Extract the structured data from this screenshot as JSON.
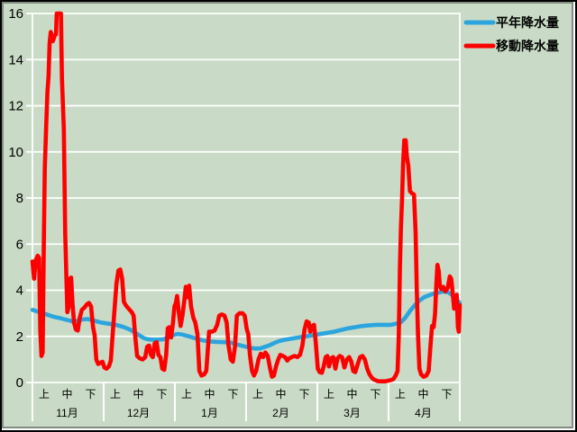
{
  "colors": {
    "background": "#c9dbc6",
    "gridline": "#ffffff",
    "axis_text": "#000000",
    "normal_precip_line": "#2aa5de",
    "moving_precip_line": "#ff0000"
  },
  "legend": {
    "position": "top-right",
    "items": [
      {
        "label": "平年降水量",
        "color": "#2aa5de"
      },
      {
        "label": "移動降水量",
        "color": "#ff0000"
      }
    ]
  },
  "chart_data": {
    "type": "line",
    "title": "",
    "xlabel": "",
    "ylabel": "",
    "grid": true,
    "legend_position": "top-right",
    "y_axis": {
      "min": 0,
      "max": 16,
      "step": 2,
      "tick_labels": [
        "0",
        "2",
        "4",
        "6",
        "8",
        "10",
        "12",
        "14",
        "16"
      ]
    },
    "x_axis": {
      "unit": "day (Nov 1 = 0 ... Apr 30 = 180)",
      "months": [
        {
          "label": "11月",
          "periods": [
            "上",
            "中",
            "下"
          ]
        },
        {
          "label": "12月",
          "periods": [
            "上",
            "中",
            "下"
          ]
        },
        {
          "label": "1月",
          "periods": [
            "上",
            "中",
            "下"
          ]
        },
        {
          "label": "2月",
          "periods": [
            "上",
            "中",
            "下"
          ]
        },
        {
          "label": "3月",
          "periods": [
            "上",
            "中",
            "下"
          ]
        },
        {
          "label": "4月",
          "periods": [
            "上",
            "中",
            "下"
          ]
        }
      ]
    },
    "series": [
      {
        "key": "normal-precipitation",
        "name": "平年降水量",
        "color": "#2aa5de",
        "width": 4.6,
        "points": [
          [
            0,
            3.15
          ],
          [
            3,
            3.05
          ],
          [
            6,
            2.95
          ],
          [
            9,
            2.85
          ],
          [
            12,
            2.78
          ],
          [
            15,
            2.7
          ],
          [
            17,
            2.65
          ],
          [
            19,
            2.67
          ],
          [
            21,
            2.73
          ],
          [
            23,
            2.75
          ],
          [
            25,
            2.72
          ],
          [
            27,
            2.65
          ],
          [
            29,
            2.6
          ],
          [
            32,
            2.55
          ],
          [
            35,
            2.5
          ],
          [
            38,
            2.42
          ],
          [
            41,
            2.3
          ],
          [
            43,
            2.18
          ],
          [
            45,
            2.05
          ],
          [
            47,
            1.92
          ],
          [
            49,
            1.87
          ],
          [
            52,
            1.85
          ],
          [
            55,
            1.87
          ],
          [
            57,
            1.95
          ],
          [
            59,
            2.05
          ],
          [
            61,
            2.1
          ],
          [
            63,
            2.08
          ],
          [
            66,
            2.0
          ],
          [
            69,
            1.9
          ],
          [
            72,
            1.82
          ],
          [
            75,
            1.78
          ],
          [
            78,
            1.76
          ],
          [
            81,
            1.75
          ],
          [
            84,
            1.72
          ],
          [
            86,
            1.65
          ],
          [
            88,
            1.6
          ],
          [
            90,
            1.55
          ],
          [
            92,
            1.5
          ],
          [
            94,
            1.47
          ],
          [
            96,
            1.48
          ],
          [
            98,
            1.55
          ],
          [
            100,
            1.62
          ],
          [
            102,
            1.72
          ],
          [
            104,
            1.8
          ],
          [
            106,
            1.85
          ],
          [
            109,
            1.9
          ],
          [
            112,
            1.95
          ],
          [
            115,
            2.0
          ],
          [
            118,
            2.05
          ],
          [
            121,
            2.1
          ],
          [
            124,
            2.15
          ],
          [
            127,
            2.2
          ],
          [
            130,
            2.28
          ],
          [
            133,
            2.35
          ],
          [
            136,
            2.4
          ],
          [
            139,
            2.45
          ],
          [
            142,
            2.48
          ],
          [
            145,
            2.5
          ],
          [
            148,
            2.5
          ],
          [
            151,
            2.5
          ],
          [
            153,
            2.55
          ],
          [
            155,
            2.6
          ],
          [
            157,
            2.8
          ],
          [
            159,
            3.1
          ],
          [
            161,
            3.35
          ],
          [
            163,
            3.55
          ],
          [
            165,
            3.7
          ],
          [
            167,
            3.78
          ],
          [
            169,
            3.85
          ],
          [
            171,
            3.9
          ],
          [
            173,
            3.95
          ],
          [
            175,
            3.92
          ],
          [
            176,
            3.85
          ],
          [
            177,
            3.78
          ],
          [
            178,
            3.68
          ],
          [
            179,
            3.55
          ],
          [
            180,
            3.45
          ]
        ]
      },
      {
        "key": "moving-precipitation",
        "name": "移動降水量",
        "color": "#ff0000",
        "width": 4.6,
        "points": [
          [
            0,
            5.25
          ],
          [
            0.7,
            4.5
          ],
          [
            1.4,
            5.3
          ],
          [
            2.2,
            5.5
          ],
          [
            2.8,
            5.4
          ],
          [
            3.3,
            2.2
          ],
          [
            3.8,
            1.15
          ],
          [
            4.3,
            1.3
          ],
          [
            4.8,
            6.0
          ],
          [
            5.2,
            9.3
          ],
          [
            5.8,
            11.2
          ],
          [
            6.3,
            12.6
          ],
          [
            6.8,
            13.3
          ],
          [
            7.2,
            14.7
          ],
          [
            7.7,
            15.2
          ],
          [
            8.6,
            14.8
          ],
          [
            9.4,
            15.05
          ],
          [
            9.9,
            15.1
          ],
          [
            10.2,
            16.0
          ],
          [
            12.0,
            16.0
          ],
          [
            12.4,
            13.2
          ],
          [
            13.2,
            11.0
          ],
          [
            13.8,
            6.5
          ],
          [
            14.7,
            3.05
          ],
          [
            15.3,
            3.3
          ],
          [
            15.8,
            4.5
          ],
          [
            16.3,
            4.55
          ],
          [
            16.9,
            3.4
          ],
          [
            17.5,
            2.6
          ],
          [
            18.3,
            2.3
          ],
          [
            19.1,
            2.25
          ],
          [
            19.9,
            2.8
          ],
          [
            20.8,
            3.15
          ],
          [
            21.9,
            3.25
          ],
          [
            23.0,
            3.4
          ],
          [
            23.8,
            3.45
          ],
          [
            24.7,
            3.3
          ],
          [
            25.5,
            2.4
          ],
          [
            26.2,
            2.05
          ],
          [
            26.9,
            1.0
          ],
          [
            27.7,
            0.8
          ],
          [
            28.6,
            0.85
          ],
          [
            29.5,
            0.9
          ],
          [
            30.3,
            0.65
          ],
          [
            31.2,
            0.6
          ],
          [
            32.2,
            0.7
          ],
          [
            33.0,
            0.95
          ],
          [
            33.8,
            2.1
          ],
          [
            34.6,
            3.2
          ],
          [
            35.4,
            4.3
          ],
          [
            36.2,
            4.85
          ],
          [
            37.0,
            4.9
          ],
          [
            37.8,
            4.5
          ],
          [
            38.5,
            3.5
          ],
          [
            39.3,
            3.35
          ],
          [
            40.5,
            3.2
          ],
          [
            41.8,
            3.05
          ],
          [
            42.6,
            2.9
          ],
          [
            43.3,
            2.0
          ],
          [
            44.1,
            1.15
          ],
          [
            45.2,
            1.05
          ],
          [
            46.4,
            1.0
          ],
          [
            47.5,
            1.1
          ],
          [
            48.3,
            1.55
          ],
          [
            49.1,
            1.6
          ],
          [
            49.9,
            1.2
          ],
          [
            50.7,
            1.1
          ],
          [
            51.5,
            1.7
          ],
          [
            52.3,
            1.75
          ],
          [
            53.1,
            1.2
          ],
          [
            53.9,
            1.1
          ],
          [
            54.7,
            0.6
          ],
          [
            55.5,
            0.55
          ],
          [
            56.3,
            1.2
          ],
          [
            57.0,
            2.35
          ],
          [
            57.6,
            2.4
          ],
          [
            58.4,
            1.95
          ],
          [
            59.2,
            2.6
          ],
          [
            59.8,
            3.3
          ],
          [
            60.4,
            3.45
          ],
          [
            60.9,
            3.75
          ],
          [
            61.6,
            3.1
          ],
          [
            62.4,
            2.45
          ],
          [
            63.2,
            2.9
          ],
          [
            63.9,
            3.5
          ],
          [
            64.6,
            4.15
          ],
          [
            65.3,
            3.7
          ],
          [
            66.0,
            4.2
          ],
          [
            66.8,
            3.3
          ],
          [
            67.8,
            2.8
          ],
          [
            68.6,
            2.6
          ],
          [
            69.5,
            2.1
          ],
          [
            70.3,
            0.5
          ],
          [
            71.2,
            0.3
          ],
          [
            72.3,
            0.35
          ],
          [
            73.2,
            0.5
          ],
          [
            73.8,
            1.3
          ],
          [
            74.4,
            2.2
          ],
          [
            75.5,
            2.2
          ],
          [
            76.7,
            2.25
          ],
          [
            77.8,
            2.5
          ],
          [
            78.7,
            2.9
          ],
          [
            79.8,
            2.95
          ],
          [
            80.9,
            2.9
          ],
          [
            81.8,
            2.6
          ],
          [
            82.6,
            1.6
          ],
          [
            83.5,
            1.0
          ],
          [
            84.4,
            0.9
          ],
          [
            85.3,
            1.55
          ],
          [
            86.1,
            2.9
          ],
          [
            87.2,
            3.0
          ],
          [
            88.5,
            3.0
          ],
          [
            89.4,
            2.9
          ],
          [
            90.3,
            2.3
          ],
          [
            90.9,
            2.1
          ],
          [
            91.6,
            1.2
          ],
          [
            92.5,
            0.5
          ],
          [
            93.3,
            0.3
          ],
          [
            94.2,
            0.5
          ],
          [
            95.2,
            1.0
          ],
          [
            96.2,
            1.25
          ],
          [
            97.1,
            1.1
          ],
          [
            98.1,
            1.3
          ],
          [
            99.1,
            1.15
          ],
          [
            100.1,
            0.6
          ],
          [
            100.9,
            0.25
          ],
          [
            101.7,
            0.3
          ],
          [
            102.6,
            0.7
          ],
          [
            103.5,
            1.0
          ],
          [
            104.4,
            1.2
          ],
          [
            105.4,
            1.15
          ],
          [
            106.4,
            1.1
          ],
          [
            107.3,
            0.95
          ],
          [
            108.2,
            1.05
          ],
          [
            109.2,
            1.1
          ],
          [
            110.4,
            1.15
          ],
          [
            111.6,
            1.1
          ],
          [
            112.7,
            1.2
          ],
          [
            113.7,
            1.6
          ],
          [
            114.6,
            2.3
          ],
          [
            115.5,
            2.65
          ],
          [
            116.4,
            2.6
          ],
          [
            117.0,
            2.2
          ],
          [
            117.9,
            2.45
          ],
          [
            118.6,
            2.5
          ],
          [
            119.3,
            1.75
          ],
          [
            120.2,
            0.6
          ],
          [
            121.0,
            0.45
          ],
          [
            121.9,
            0.42
          ],
          [
            122.7,
            0.7
          ],
          [
            123.5,
            1.1
          ],
          [
            124.2,
            1.15
          ],
          [
            124.9,
            0.7
          ],
          [
            125.8,
            1.05
          ],
          [
            126.7,
            1.1
          ],
          [
            127.6,
            0.6
          ],
          [
            128.5,
            1.05
          ],
          [
            129.4,
            1.15
          ],
          [
            130.4,
            1.1
          ],
          [
            131.4,
            0.65
          ],
          [
            132.4,
            1.0
          ],
          [
            133.4,
            1.1
          ],
          [
            134.3,
            0.9
          ],
          [
            135.1,
            0.5
          ],
          [
            136.0,
            0.45
          ],
          [
            137.0,
            0.8
          ],
          [
            138.0,
            1.1
          ],
          [
            139.0,
            1.15
          ],
          [
            140.0,
            1.0
          ],
          [
            141.0,
            0.6
          ],
          [
            142.0,
            0.35
          ],
          [
            143.0,
            0.2
          ],
          [
            144.0,
            0.12
          ],
          [
            145.5,
            0.06
          ],
          [
            147.0,
            0.05
          ],
          [
            148.5,
            0.05
          ],
          [
            150.0,
            0.08
          ],
          [
            151.0,
            0.1
          ],
          [
            152.0,
            0.15
          ],
          [
            153.0,
            0.3
          ],
          [
            153.8,
            0.5
          ],
          [
            154.3,
            2.0
          ],
          [
            154.8,
            5.0
          ],
          [
            155.2,
            6.7
          ],
          [
            155.7,
            8.0
          ],
          [
            156.1,
            9.5
          ],
          [
            156.6,
            10.5
          ],
          [
            157.2,
            10.5
          ],
          [
            157.7,
            9.8
          ],
          [
            158.3,
            9.4
          ],
          [
            159.0,
            8.3
          ],
          [
            159.9,
            8.2
          ],
          [
            160.7,
            8.15
          ],
          [
            161.4,
            6.5
          ],
          [
            161.9,
            4.0
          ],
          [
            162.4,
            2.0
          ],
          [
            163.0,
            0.6
          ],
          [
            163.7,
            0.35
          ],
          [
            164.8,
            0.25
          ],
          [
            165.9,
            0.3
          ],
          [
            166.9,
            0.5
          ],
          [
            167.6,
            1.5
          ],
          [
            168.3,
            2.45
          ],
          [
            169.0,
            2.4
          ],
          [
            169.6,
            3.0
          ],
          [
            170.1,
            4.2
          ],
          [
            170.6,
            5.1
          ],
          [
            171.1,
            4.85
          ],
          [
            171.6,
            4.2
          ],
          [
            172.2,
            4.05
          ],
          [
            173.0,
            4.15
          ],
          [
            173.9,
            3.95
          ],
          [
            174.9,
            4.1
          ],
          [
            175.8,
            4.6
          ],
          [
            176.4,
            4.5
          ],
          [
            177.0,
            3.9
          ],
          [
            177.6,
            3.2
          ],
          [
            178.1,
            3.6
          ],
          [
            178.7,
            3.8
          ],
          [
            179.2,
            2.4
          ],
          [
            179.6,
            2.2
          ],
          [
            180.0,
            3.35
          ]
        ]
      }
    ]
  }
}
